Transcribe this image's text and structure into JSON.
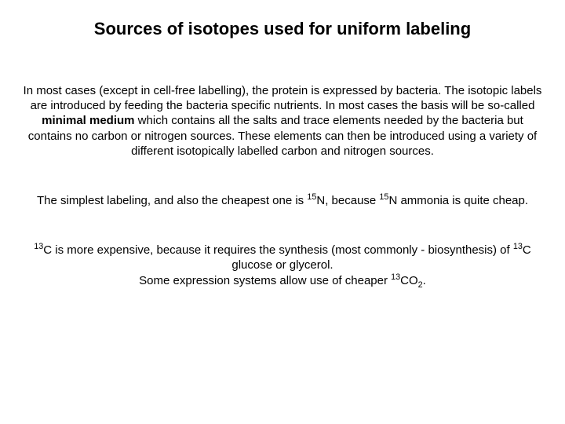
{
  "title": "Sources of isotopes used for uniform labeling",
  "p1a": "In most cases (except in cell-free labelling), the protein is expressed by bacteria. The isotopic labels are introduced by feeding the bacteria specific nutrients. In most cases the basis will be so-called ",
  "p1b": "minimal medium",
  "p1c": " which contains all the salts and trace elements needed by the bacteria but contains no carbon or nitrogen sources. These elements can then be introduced using a variety of different isotopically labelled carbon and nitrogen sources.",
  "p2a": "The simplest labeling, and also the cheapest one is ",
  "p2b": "N, because ",
  "p2c": "N ammonia is quite cheap.",
  "p3a": "C is more expensive, because it requires the synthesis (most commonly - biosynthesis) of ",
  "p3b": "C glucose or glycerol.",
  "p3c": "Some expression systems allow use of cheaper ",
  "p3d": "CO",
  "p3e": ".",
  "iso15": "15",
  "iso13": "13",
  "sub2": "2"
}
